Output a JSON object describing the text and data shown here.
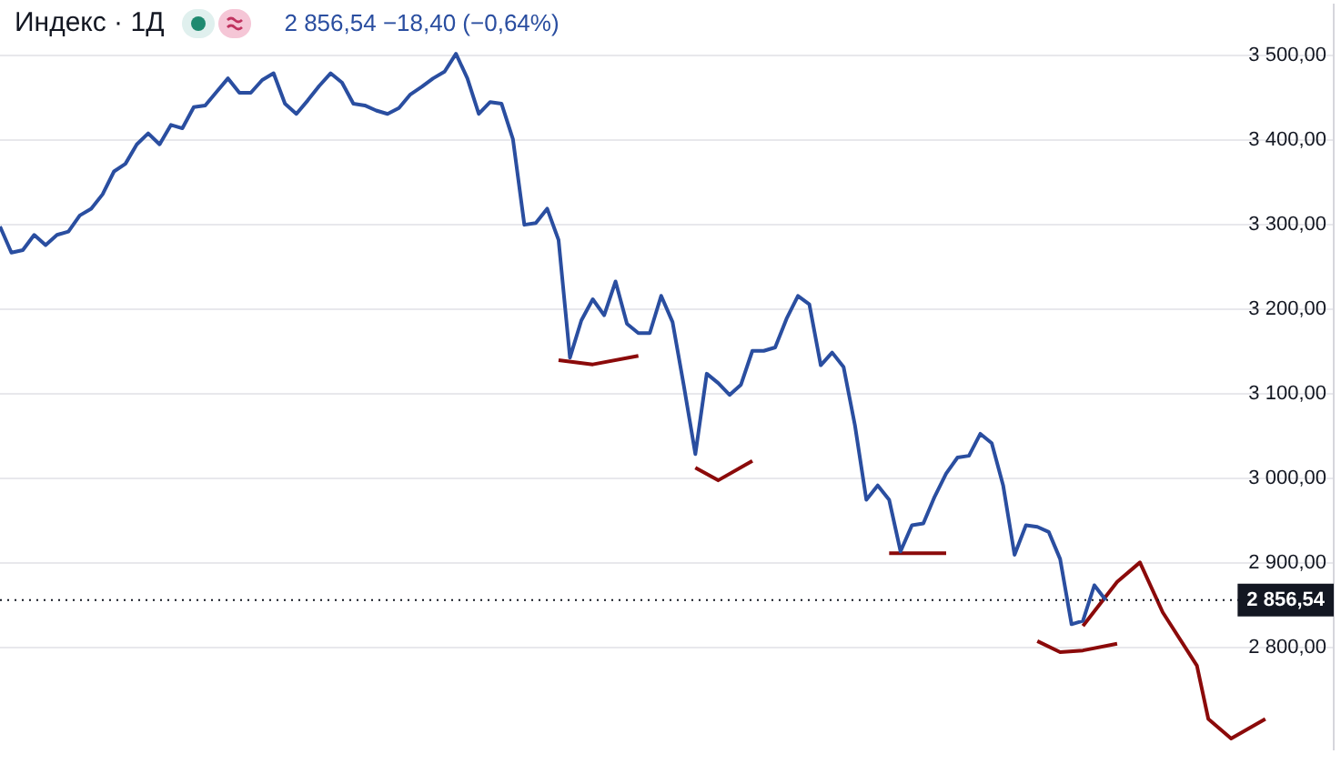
{
  "chart_data": {
    "type": "line",
    "title": "Индекс · 1Д",
    "annotations": [
      "2 856,54 −18,40 (−0,64%)"
    ],
    "categories": [
      null,
      null,
      null,
      null,
      null,
      null,
      null,
      null,
      null,
      null,
      null,
      null,
      null,
      null,
      null,
      null,
      null,
      null,
      null,
      null,
      null,
      null,
      null,
      null,
      null,
      null,
      null,
      null,
      null,
      null,
      null,
      null,
      null,
      null,
      null,
      null,
      null,
      null,
      null,
      null,
      null,
      null,
      null,
      null,
      null,
      null,
      null,
      null,
      null,
      null,
      null,
      null,
      null,
      null,
      null,
      null,
      null,
      null,
      null,
      null,
      null,
      null,
      null,
      null,
      null,
      null,
      null,
      null,
      null,
      null,
      null,
      null,
      null,
      null,
      null,
      null,
      null,
      null,
      null,
      null,
      null,
      null,
      null,
      null,
      null,
      null,
      null,
      null,
      null,
      null,
      null,
      null,
      null,
      null,
      null,
      null,
      null,
      null,
      null,
      null,
      null,
      null,
      null,
      null,
      null,
      null,
      null,
      null,
      null,
      null,
      null,
      null,
      null,
      null,
      null,
      null,
      null,
      null
    ],
    "series": [
      {
        "color": "#2a4ea0",
        "values": [
          3298,
          3267,
          3270,
          3288,
          3276,
          3288,
          3292,
          3311,
          3319,
          3336,
          3363,
          3372,
          3395,
          3408,
          3395,
          3418,
          3414,
          3439,
          3441,
          3457,
          3473,
          3456,
          3456,
          3471,
          3479,
          3443,
          3431,
          3447,
          3464,
          3479,
          3468,
          3443,
          3441,
          3435,
          3431,
          3438,
          3454,
          3463,
          3473,
          3481,
          3502,
          3473,
          3431,
          3445,
          3443,
          3401,
          3300,
          3302,
          3319,
          3282,
          3143,
          3187,
          3212,
          3193,
          3233,
          3183,
          3172,
          3172,
          3216,
          3185,
          3109,
          3029,
          3124,
          3113,
          3099,
          3111,
          3151,
          3151,
          3155,
          3189,
          3216,
          3206,
          3134,
          3149,
          3132,
          3063,
          2975,
          2992,
          2975,
          2914,
          2945,
          2947,
          2979,
          3006,
          3025,
          3027,
          3053,
          3042,
          2992,
          2910,
          2945,
          2943,
          2937,
          2905,
          2828,
          2832,
          2874,
          2856.54,
          null,
          null,
          null,
          null,
          null,
          null,
          null,
          null,
          null,
          null,
          null,
          null,
          null,
          null,
          null,
          null,
          null,
          null,
          null,
          null
        ]
      },
      {
        "color": "#8b0a0a",
        "values": [
          null,
          null,
          null,
          null,
          null,
          null,
          null,
          null,
          null,
          null,
          null,
          null,
          null,
          null,
          null,
          null,
          null,
          null,
          null,
          null,
          null,
          null,
          null,
          null,
          null,
          null,
          null,
          null,
          null,
          null,
          null,
          null,
          null,
          null,
          null,
          null,
          null,
          null,
          null,
          null,
          null,
          null,
          null,
          null,
          null,
          null,
          null,
          null,
          null,
          3140,
          null,
          null,
          3135,
          null,
          null,
          null,
          3145,
          null,
          null,
          null,
          null,
          null,
          null,
          null,
          null,
          null,
          null,
          null,
          null,
          null,
          null,
          null,
          null,
          null,
          null,
          null,
          null,
          null,
          null,
          null,
          null,
          null,
          null,
          null,
          null,
          null,
          null,
          null,
          null,
          null,
          null,
          null,
          null,
          null,
          null,
          null,
          null,
          null,
          null,
          null,
          null,
          null,
          null,
          null,
          null,
          null,
          null,
          null,
          null,
          null,
          null,
          null,
          null,
          null,
          null,
          null,
          null,
          null
        ]
      },
      {
        "color": "#8b0a0a",
        "values": [
          null,
          null,
          null,
          null,
          null,
          null,
          null,
          null,
          null,
          null,
          null,
          null,
          null,
          null,
          null,
          null,
          null,
          null,
          null,
          null,
          null,
          null,
          null,
          null,
          null,
          null,
          null,
          null,
          null,
          null,
          null,
          null,
          null,
          null,
          null,
          null,
          null,
          null,
          null,
          null,
          null,
          null,
          null,
          null,
          null,
          null,
          null,
          null,
          null,
          null,
          null,
          null,
          null,
          null,
          null,
          null,
          null,
          null,
          null,
          null,
          null,
          3013,
          null,
          2998,
          null,
          null,
          3021,
          null,
          null,
          null,
          null,
          null,
          null,
          null,
          null,
          null,
          null,
          null,
          null,
          null,
          null,
          null,
          null,
          null,
          null,
          null,
          null,
          null,
          null,
          null,
          null,
          null,
          null,
          null,
          null,
          null,
          null,
          null,
          null,
          null,
          null,
          null,
          null,
          null,
          null,
          null,
          null,
          null,
          null,
          null,
          null,
          null,
          null,
          null,
          null,
          null,
          null,
          null
        ]
      },
      {
        "color": "#8b0a0a",
        "values": [
          null,
          null,
          null,
          null,
          null,
          null,
          null,
          null,
          null,
          null,
          null,
          null,
          null,
          null,
          null,
          null,
          null,
          null,
          null,
          null,
          null,
          null,
          null,
          null,
          null,
          null,
          null,
          null,
          null,
          null,
          null,
          null,
          null,
          null,
          null,
          null,
          null,
          null,
          null,
          null,
          null,
          null,
          null,
          null,
          null,
          null,
          null,
          null,
          null,
          null,
          null,
          null,
          null,
          null,
          null,
          null,
          null,
          null,
          null,
          null,
          null,
          null,
          null,
          null,
          null,
          null,
          null,
          null,
          null,
          null,
          null,
          null,
          null,
          null,
          null,
          null,
          null,
          null,
          2912,
          null,
          null,
          null,
          null,
          2912,
          null,
          null,
          null,
          null,
          null,
          null,
          null,
          null,
          null,
          null,
          null,
          null,
          null,
          null,
          null,
          null,
          null,
          null,
          null,
          null,
          null,
          null,
          null,
          null,
          null,
          null,
          null,
          null,
          null,
          null,
          null,
          null,
          null,
          null
        ]
      },
      {
        "color": "#8b0a0a",
        "values": [
          null,
          null,
          null,
          null,
          null,
          null,
          null,
          null,
          null,
          null,
          null,
          null,
          null,
          null,
          null,
          null,
          null,
          null,
          null,
          null,
          null,
          null,
          null,
          null,
          null,
          null,
          null,
          null,
          null,
          null,
          null,
          null,
          null,
          null,
          null,
          null,
          null,
          null,
          null,
          null,
          null,
          null,
          null,
          null,
          null,
          null,
          null,
          null,
          null,
          null,
          null,
          null,
          null,
          null,
          null,
          null,
          null,
          null,
          null,
          null,
          null,
          null,
          null,
          null,
          null,
          null,
          null,
          null,
          null,
          null,
          null,
          null,
          null,
          null,
          null,
          null,
          null,
          null,
          null,
          null,
          null,
          null,
          null,
          null,
          null,
          null,
          null,
          null,
          null,
          null,
          null,
          2808,
          null,
          2795,
          null,
          2797,
          null,
          null,
          2805,
          null,
          null,
          null,
          null,
          null,
          null,
          null,
          null,
          null,
          null,
          null,
          null,
          null,
          null,
          null,
          null,
          null,
          null,
          null
        ]
      },
      {
        "color": "#8b0a0a",
        "values": [
          null,
          null,
          null,
          null,
          null,
          null,
          null,
          null,
          null,
          null,
          null,
          null,
          null,
          null,
          null,
          null,
          null,
          null,
          null,
          null,
          null,
          null,
          null,
          null,
          null,
          null,
          null,
          null,
          null,
          null,
          null,
          null,
          null,
          null,
          null,
          null,
          null,
          null,
          null,
          null,
          null,
          null,
          null,
          null,
          null,
          null,
          null,
          null,
          null,
          null,
          null,
          null,
          null,
          null,
          null,
          null,
          null,
          null,
          null,
          null,
          null,
          null,
          null,
          null,
          null,
          null,
          null,
          null,
          null,
          null,
          null,
          null,
          null,
          null,
          null,
          null,
          null,
          null,
          null,
          null,
          null,
          null,
          null,
          null,
          null,
          null,
          null,
          null,
          null,
          null,
          null,
          null,
          null,
          null,
          null,
          2826,
          null,
          null,
          2878,
          null,
          2901,
          null,
          2842,
          null,
          null,
          2779,
          2716,
          null,
          2693,
          null,
          null,
          2716,
          null,
          null,
          null,
          null,
          null,
          null
        ]
      }
    ],
    "ylim": [
      2680,
      3560
    ],
    "yticks": [
      {
        "value": 2800,
        "label": "2 800,00"
      },
      {
        "value": 2900,
        "label": "2 900,00"
      },
      {
        "value": 3000,
        "label": "3 000,00"
      },
      {
        "value": 3100,
        "label": "3 100,00"
      },
      {
        "value": 3200,
        "label": "3 200,00"
      },
      {
        "value": 3300,
        "label": "3 300,00"
      },
      {
        "value": 3400,
        "label": "3 400,00"
      },
      {
        "value": 3500,
        "label": "3 500,00"
      }
    ],
    "ref_lines": [
      {
        "axis": "y",
        "value": 2856.54,
        "label": "2 856,54",
        "color": "#131722",
        "line_style": "dotted"
      }
    ],
    "grid": "y",
    "tick_labels": "y",
    "marker": "none",
    "line_style": "solid"
  }
}
